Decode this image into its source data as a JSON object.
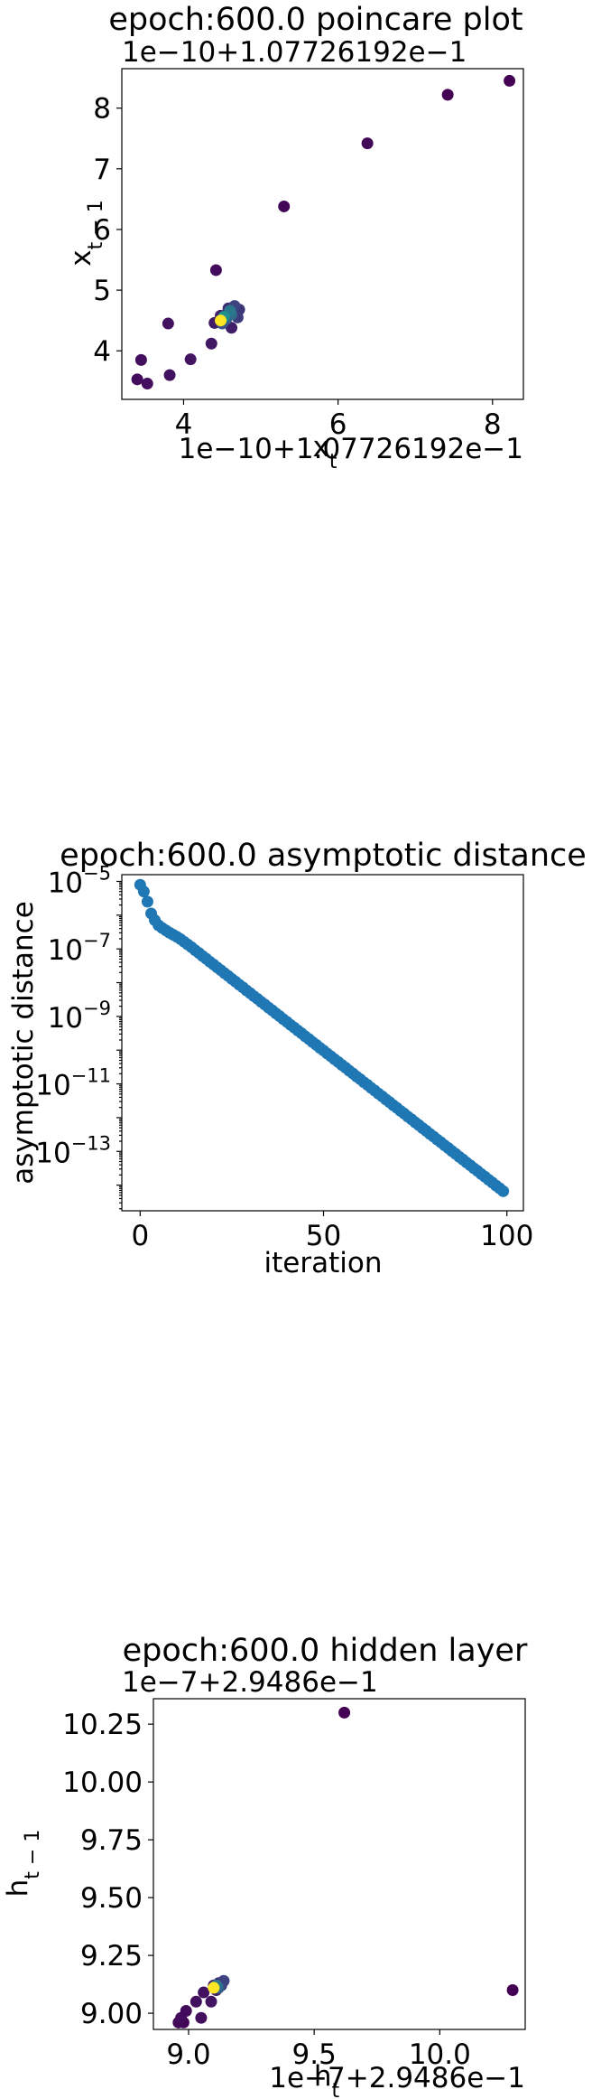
{
  "chart_data": [
    {
      "type": "scatter",
      "title": "epoch:600.0 poincare plot",
      "xlabel": "x_t",
      "ylabel": "x_{t-1}",
      "x_offset_text": "1e−10+1.07726192e−1",
      "y_offset_text": "1e−10+1.07726192e−1",
      "xlim": [
        3.2,
        8.4
      ],
      "ylim": [
        3.2,
        8.65
      ],
      "xticks": [
        {
          "v": 4,
          "label": "4"
        },
        {
          "v": 6,
          "label": "6"
        },
        {
          "v": 8,
          "label": "8"
        }
      ],
      "yticks": [
        {
          "v": 4,
          "label": "4"
        },
        {
          "v": 5,
          "label": "5"
        },
        {
          "v": 6,
          "label": "6"
        },
        {
          "v": 7,
          "label": "7"
        },
        {
          "v": 8,
          "label": "8"
        }
      ],
      "grid": false,
      "colormap": "viridis",
      "points": [
        {
          "x": 8.22,
          "y": 8.45,
          "c": 0.0
        },
        {
          "x": 7.42,
          "y": 8.22,
          "c": 0.0
        },
        {
          "x": 6.38,
          "y": 7.42,
          "c": 0.02
        },
        {
          "x": 5.3,
          "y": 6.38,
          "c": 0.02
        },
        {
          "x": 4.42,
          "y": 5.33,
          "c": 0.03
        },
        {
          "x": 3.4,
          "y": 3.53,
          "c": 0.03
        },
        {
          "x": 3.53,
          "y": 3.46,
          "c": 0.04
        },
        {
          "x": 3.45,
          "y": 3.85,
          "c": 0.04
        },
        {
          "x": 3.82,
          "y": 3.6,
          "c": 0.05
        },
        {
          "x": 3.8,
          "y": 4.45,
          "c": 0.05
        },
        {
          "x": 4.09,
          "y": 3.86,
          "c": 0.06
        },
        {
          "x": 4.36,
          "y": 4.12,
          "c": 0.07
        },
        {
          "x": 4.4,
          "y": 4.46,
          "c": 0.08
        },
        {
          "x": 4.62,
          "y": 4.38,
          "c": 0.09
        },
        {
          "x": 4.48,
          "y": 4.58,
          "c": 0.1
        },
        {
          "x": 4.68,
          "y": 4.62,
          "c": 0.12
        },
        {
          "x": 4.58,
          "y": 4.7,
          "c": 0.14
        },
        {
          "x": 4.72,
          "y": 4.68,
          "c": 0.16
        },
        {
          "x": 4.7,
          "y": 4.55,
          "c": 0.18
        },
        {
          "x": 4.66,
          "y": 4.74,
          "c": 0.2
        },
        {
          "x": 4.5,
          "y": 4.45,
          "c": 0.25
        },
        {
          "x": 4.55,
          "y": 4.52,
          "c": 0.3
        },
        {
          "x": 4.62,
          "y": 4.6,
          "c": 0.35
        },
        {
          "x": 4.6,
          "y": 4.66,
          "c": 0.4
        },
        {
          "x": 4.52,
          "y": 4.56,
          "c": 0.5
        },
        {
          "x": 4.48,
          "y": 4.5,
          "c": 1.0
        }
      ]
    },
    {
      "type": "scatter",
      "title": "epoch:600.0 asymptotic distance",
      "xlabel": "iteration",
      "ylabel": "asymptotic distance",
      "yscale": "log",
      "xlim": [
        -5,
        104.5
      ],
      "ylim_log10": [
        -14.76,
        -4.8
      ],
      "xticks": [
        {
          "v": 0,
          "label": "0"
        },
        {
          "v": 50,
          "label": "50"
        },
        {
          "v": 100,
          "label": "100"
        }
      ],
      "yticks": [
        {
          "v": -5,
          "base": "10",
          "exp": "−5"
        },
        {
          "v": -7,
          "base": "10",
          "exp": "−7"
        },
        {
          "v": -9,
          "base": "10",
          "exp": "−9"
        },
        {
          "v": -11,
          "base": "10",
          "exp": "−11"
        },
        {
          "v": -13,
          "base": "10",
          "exp": "−13"
        }
      ],
      "grid": false,
      "color": "#1f77b4",
      "series": [
        {
          "x_start": 0,
          "x_end": 99,
          "log10_y": [
            -5.1,
            -5.3,
            -5.6,
            -5.95,
            -6.15,
            -6.3,
            -6.38,
            -6.45,
            -6.52,
            -6.58,
            -6.64,
            -6.71,
            -6.79,
            -6.87,
            -6.95,
            -7.04,
            -7.12,
            -7.21,
            -7.29,
            -7.38,
            -7.46,
            -7.55,
            -7.63,
            -7.72,
            -7.8,
            -7.89,
            -7.97,
            -8.06,
            -8.14,
            -8.23,
            -8.31,
            -8.4,
            -8.48,
            -8.57,
            -8.65,
            -8.74,
            -8.82,
            -8.91,
            -8.99,
            -9.08,
            -9.16,
            -9.25,
            -9.33,
            -9.42,
            -9.5,
            -9.59,
            -9.67,
            -9.76,
            -9.84,
            -9.93,
            -10.01,
            -10.1,
            -10.18,
            -10.27,
            -10.35,
            -10.44,
            -10.52,
            -10.61,
            -10.69,
            -10.78,
            -10.86,
            -10.95,
            -11.03,
            -11.12,
            -11.2,
            -11.29,
            -11.37,
            -11.46,
            -11.54,
            -11.63,
            -11.71,
            -11.8,
            -11.88,
            -11.97,
            -12.05,
            -12.14,
            -12.22,
            -12.31,
            -12.39,
            -12.48,
            -12.56,
            -12.65,
            -12.73,
            -12.82,
            -12.9,
            -12.99,
            -13.07,
            -13.16,
            -13.24,
            -13.33,
            -13.41,
            -13.5,
            -13.58,
            -13.67,
            -13.75,
            -13.84,
            -13.92,
            -14.01,
            -14.09,
            -14.18
          ]
        }
      ]
    },
    {
      "type": "scatter",
      "title": "epoch:600.0 hidden layer",
      "xlabel": "h_t",
      "ylabel": "h_{t-1}",
      "x_offset_text": "1e−7+2.9486e−1",
      "y_offset_text": "1e−7+2.9486e−1",
      "xlim": [
        8.86,
        10.34
      ],
      "ylim": [
        8.93,
        10.36
      ],
      "xticks": [
        {
          "v": 9.0,
          "label": "9.0"
        },
        {
          "v": 9.5,
          "label": "9.5"
        },
        {
          "v": 10.0,
          "label": "10.0"
        }
      ],
      "yticks": [
        {
          "v": 9.0,
          "label": "9.00"
        },
        {
          "v": 9.25,
          "label": "9.25"
        },
        {
          "v": 9.5,
          "label": "9.50"
        },
        {
          "v": 9.75,
          "label": "9.75"
        },
        {
          "v": 10.0,
          "label": "10.00"
        },
        {
          "v": 10.25,
          "label": "10.25"
        }
      ],
      "grid": false,
      "colormap": "viridis",
      "points": [
        {
          "x": 9.62,
          "y": 10.3,
          "c": 0.0
        },
        {
          "x": 10.29,
          "y": 9.1,
          "c": 0.0
        },
        {
          "x": 8.96,
          "y": 8.96,
          "c": 0.02
        },
        {
          "x": 8.98,
          "y": 8.96,
          "c": 0.02
        },
        {
          "x": 8.97,
          "y": 8.98,
          "c": 0.03
        },
        {
          "x": 8.99,
          "y": 9.01,
          "c": 0.03
        },
        {
          "x": 9.03,
          "y": 9.05,
          "c": 0.04
        },
        {
          "x": 9.05,
          "y": 8.98,
          "c": 0.04
        },
        {
          "x": 9.06,
          "y": 9.09,
          "c": 0.05
        },
        {
          "x": 9.09,
          "y": 9.05,
          "c": 0.06
        },
        {
          "x": 9.1,
          "y": 9.12,
          "c": 0.08
        },
        {
          "x": 9.11,
          "y": 9.1,
          "c": 0.1
        },
        {
          "x": 9.12,
          "y": 9.13,
          "c": 0.13
        },
        {
          "x": 9.13,
          "y": 9.12,
          "c": 0.16
        },
        {
          "x": 9.14,
          "y": 9.14,
          "c": 0.2
        },
        {
          "x": 9.12,
          "y": 9.11,
          "c": 0.3
        },
        {
          "x": 9.11,
          "y": 9.12,
          "c": 0.4
        },
        {
          "x": 9.1,
          "y": 9.11,
          "c": 1.0
        }
      ]
    }
  ]
}
